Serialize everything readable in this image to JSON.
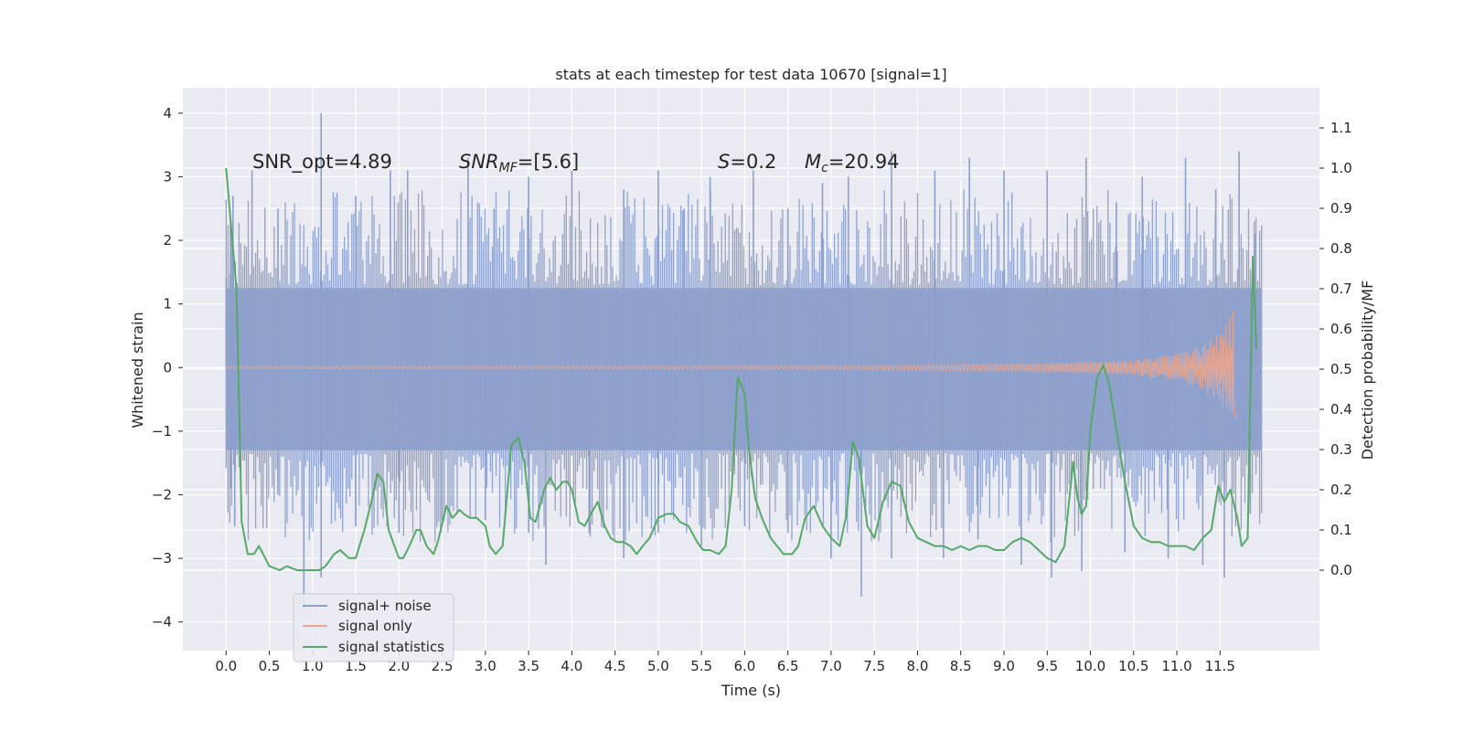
{
  "chart_data": {
    "type": "line",
    "title": "stats at each timestep for test data 10670 [signal=1]",
    "xlabel": "Time (s)",
    "ylabel_left": "Whitened strain",
    "ylabel_right": "Detection probability/MF",
    "xlim": [
      -0.5,
      12.65
    ],
    "ylim_left": [
      -4.45,
      4.4
    ],
    "ylim_right": [
      -0.2,
      1.2
    ],
    "x_ticks": [
      "0.0",
      "0.5",
      "1.0",
      "1.5",
      "2.0",
      "2.5",
      "3.0",
      "3.5",
      "4.0",
      "4.5",
      "5.0",
      "5.5",
      "6.0",
      "6.5",
      "7.0",
      "7.5",
      "8.0",
      "8.5",
      "9.0",
      "9.5",
      "10.0",
      "10.5",
      "11.0",
      "11.5"
    ],
    "y_ticks_left": [
      "4",
      "3",
      "2",
      "1",
      "0",
      "−1",
      "−2",
      "−3",
      "−4"
    ],
    "y_ticks_right": [
      "1.1",
      "1.0",
      "0.9",
      "0.8",
      "0.7",
      "0.6",
      "0.5",
      "0.4",
      "0.3",
      "0.2",
      "0.1",
      "0.0"
    ],
    "grid": true,
    "legend_position": "lower-left",
    "annotations": {
      "snr_opt": "SNR_opt=4.89",
      "snr_mf_main": "SNR",
      "snr_mf_sub": "MF",
      "snr_mf_value": "=[5.6]",
      "s_var": "S",
      "s_value": "=0.2",
      "mc_main": "M",
      "mc_sub": "c",
      "mc_value": "=20.94"
    },
    "series": [
      {
        "name": "signal+ noise",
        "axis": "left",
        "color": "#8da0cb",
        "description_values": {
          "t_start": 0.0,
          "t_end": 11.98,
          "dense_band": [
            -1.3,
            1.25
          ],
          "peaks_max": [
            [
              0.0,
              1.4
            ],
            [
              0.05,
              2.3
            ],
            [
              0.08,
              2.7
            ],
            [
              0.3,
              3.1
            ],
            [
              0.6,
              2.5
            ],
            [
              1.1,
              4.0
            ],
            [
              1.5,
              2.7
            ],
            [
              1.9,
              3.1
            ],
            [
              2.1,
              3.1
            ],
            [
              2.8,
              3.3
            ],
            [
              3.1,
              2.5
            ],
            [
              3.5,
              3.0
            ],
            [
              4.0,
              3.1
            ],
            [
              4.6,
              2.8
            ],
            [
              5.0,
              3.1
            ],
            [
              5.3,
              2.5
            ],
            [
              5.6,
              3.0
            ],
            [
              6.1,
              3.1
            ],
            [
              6.5,
              2.5
            ],
            [
              6.9,
              2.9
            ],
            [
              7.2,
              3.0
            ],
            [
              7.7,
              3.4
            ],
            [
              8.2,
              3.1
            ],
            [
              8.6,
              3.3
            ],
            [
              9.0,
              3.1
            ],
            [
              9.5,
              3.1
            ],
            [
              9.95,
              3.3
            ],
            [
              10.3,
              2.6
            ],
            [
              10.6,
              3.0
            ],
            [
              11.1,
              3.3
            ],
            [
              11.45,
              2.8
            ],
            [
              11.72,
              3.4
            ],
            [
              11.9,
              2.1
            ]
          ],
          "peaks_min": [
            [
              0.05,
              -1.9
            ],
            [
              0.1,
              -2.5
            ],
            [
              0.6,
              -2.0
            ],
            [
              0.9,
              -3.8
            ],
            [
              1.1,
              -3.3
            ],
            [
              1.5,
              -2.5
            ],
            [
              2.0,
              -2.6
            ],
            [
              2.5,
              -2.4
            ],
            [
              3.0,
              -2.4
            ],
            [
              3.5,
              -2.6
            ],
            [
              3.7,
              -3.1
            ],
            [
              4.2,
              -2.6
            ],
            [
              4.6,
              -3.0
            ],
            [
              5.0,
              -2.6
            ],
            [
              5.5,
              -2.8
            ],
            [
              6.0,
              -2.5
            ],
            [
              6.5,
              -2.6
            ],
            [
              7.0,
              -3.0
            ],
            [
              7.35,
              -3.6
            ],
            [
              7.7,
              -3.0
            ],
            [
              8.3,
              -3.0
            ],
            [
              8.7,
              -2.7
            ],
            [
              9.2,
              -3.1
            ],
            [
              9.55,
              -3.3
            ],
            [
              9.9,
              -3.2
            ],
            [
              10.4,
              -2.9
            ],
            [
              10.9,
              -3.0
            ],
            [
              11.3,
              -3.1
            ],
            [
              11.55,
              -3.3
            ],
            [
              11.85,
              -2.3
            ]
          ]
        }
      },
      {
        "name": "signal only",
        "axis": "left",
        "color": "#e8a58f",
        "description_values": {
          "t_start": 0.0,
          "t_end": 11.68,
          "envelope": [
            [
              0.0,
              0.02
            ],
            [
              7.0,
              0.03
            ],
            [
              9.0,
              0.06
            ],
            [
              10.0,
              0.09
            ],
            [
              10.5,
              0.12
            ],
            [
              11.0,
              0.22
            ],
            [
              11.3,
              0.35
            ],
            [
              11.5,
              0.55
            ],
            [
              11.6,
              0.75
            ],
            [
              11.65,
              0.95
            ],
            [
              11.68,
              0.1
            ]
          ],
          "final_min": -0.8
        }
      },
      {
        "name": "signal statistics",
        "axis": "right",
        "color": "#55a868",
        "x": [
          0.0,
          0.12,
          0.18,
          0.25,
          0.32,
          0.38,
          0.5,
          0.62,
          0.7,
          0.82,
          0.95,
          1.0,
          1.08,
          1.15,
          1.25,
          1.32,
          1.42,
          1.5,
          1.6,
          1.68,
          1.75,
          1.82,
          1.88,
          2.0,
          2.05,
          2.12,
          2.2,
          2.25,
          2.32,
          2.4,
          2.45,
          2.55,
          2.62,
          2.7,
          2.75,
          2.82,
          2.9,
          3.0,
          3.05,
          3.12,
          3.2,
          3.3,
          3.38,
          3.45,
          3.52,
          3.58,
          3.68,
          3.75,
          3.82,
          3.9,
          3.95,
          4.0,
          4.08,
          4.15,
          4.22,
          4.3,
          4.38,
          4.45,
          4.52,
          4.6,
          4.68,
          4.75,
          4.82,
          4.9,
          5.0,
          5.1,
          5.18,
          5.25,
          5.35,
          5.45,
          5.52,
          5.6,
          5.7,
          5.78,
          5.85,
          5.92,
          6.0,
          6.05,
          6.12,
          6.2,
          6.3,
          6.45,
          6.55,
          6.62,
          6.7,
          6.8,
          6.9,
          7.0,
          7.1,
          7.18,
          7.25,
          7.32,
          7.42,
          7.5,
          7.6,
          7.7,
          7.8,
          7.9,
          8.0,
          8.1,
          8.2,
          8.3,
          8.4,
          8.5,
          8.6,
          8.7,
          8.8,
          8.9,
          9.0,
          9.1,
          9.2,
          9.3,
          9.4,
          9.5,
          9.6,
          9.7,
          9.8,
          9.85,
          9.9,
          9.95,
          10.0,
          10.08,
          10.15,
          10.22,
          10.3,
          10.4,
          10.5,
          10.6,
          10.7,
          10.8,
          10.9,
          11.0,
          11.1,
          11.2,
          11.3,
          11.4,
          11.48,
          11.55,
          11.62,
          11.7,
          11.75,
          11.82,
          11.88,
          11.92
        ],
        "values": [
          1.0,
          0.7,
          0.12,
          0.04,
          0.04,
          0.06,
          0.01,
          0.0,
          0.01,
          0.0,
          0.0,
          0.0,
          0.0,
          0.01,
          0.04,
          0.05,
          0.03,
          0.03,
          0.1,
          0.17,
          0.24,
          0.22,
          0.1,
          0.03,
          0.03,
          0.06,
          0.1,
          0.1,
          0.06,
          0.04,
          0.07,
          0.16,
          0.13,
          0.15,
          0.14,
          0.13,
          0.13,
          0.11,
          0.06,
          0.04,
          0.06,
          0.31,
          0.33,
          0.27,
          0.13,
          0.12,
          0.2,
          0.23,
          0.2,
          0.22,
          0.22,
          0.2,
          0.12,
          0.11,
          0.14,
          0.17,
          0.11,
          0.08,
          0.07,
          0.07,
          0.06,
          0.04,
          0.06,
          0.08,
          0.13,
          0.14,
          0.14,
          0.12,
          0.11,
          0.07,
          0.05,
          0.05,
          0.04,
          0.06,
          0.2,
          0.48,
          0.44,
          0.3,
          0.18,
          0.13,
          0.08,
          0.04,
          0.04,
          0.06,
          0.13,
          0.16,
          0.11,
          0.08,
          0.06,
          0.14,
          0.32,
          0.28,
          0.11,
          0.08,
          0.17,
          0.22,
          0.21,
          0.12,
          0.08,
          0.07,
          0.06,
          0.06,
          0.05,
          0.06,
          0.05,
          0.06,
          0.06,
          0.05,
          0.05,
          0.07,
          0.08,
          0.07,
          0.05,
          0.03,
          0.02,
          0.06,
          0.27,
          0.18,
          0.14,
          0.16,
          0.35,
          0.48,
          0.51,
          0.46,
          0.35,
          0.22,
          0.11,
          0.08,
          0.07,
          0.07,
          0.06,
          0.06,
          0.06,
          0.05,
          0.08,
          0.1,
          0.21,
          0.17,
          0.2,
          0.13,
          0.06,
          0.08,
          0.78,
          0.55
        ]
      }
    ]
  }
}
